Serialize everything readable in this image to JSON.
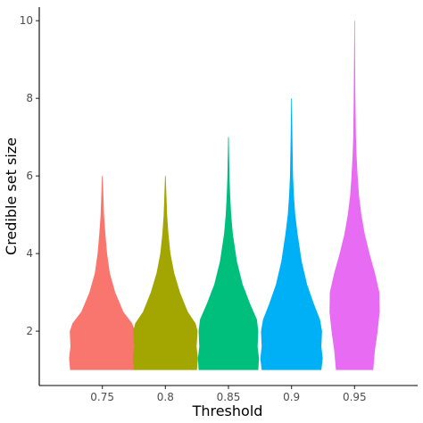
{
  "chart_data": {
    "type": "violin",
    "xlabel": "Threshold",
    "ylabel": "Credible set size",
    "ylim": [
      0.6,
      10.35
    ],
    "yticks": [
      2,
      4,
      6,
      8,
      10
    ],
    "grid": false,
    "legend": "none",
    "categories": [
      "0.75",
      "0.8",
      "0.85",
      "0.9",
      "0.95"
    ],
    "series": [
      {
        "category": "0.75",
        "color": "#F8766D",
        "min": 1,
        "max": 6,
        "density": [
          [
            1,
            0.95
          ],
          [
            1.3,
            0.98
          ],
          [
            1.6,
            0.94
          ],
          [
            2,
            0.96
          ],
          [
            2.2,
            0.88
          ],
          [
            2.5,
            0.62
          ],
          [
            3,
            0.38
          ],
          [
            3.5,
            0.22
          ],
          [
            4,
            0.14
          ],
          [
            4.5,
            0.09
          ],
          [
            5,
            0.05
          ],
          [
            5.5,
            0.03
          ],
          [
            6,
            0.01
          ]
        ]
      },
      {
        "category": "0.8",
        "color": "#A3A500",
        "min": 1,
        "max": 6,
        "density": [
          [
            1,
            0.93
          ],
          [
            1.3,
            0.96
          ],
          [
            1.6,
            0.92
          ],
          [
            2,
            0.95
          ],
          [
            2.2,
            0.89
          ],
          [
            2.5,
            0.66
          ],
          [
            3,
            0.43
          ],
          [
            3.5,
            0.26
          ],
          [
            4,
            0.15
          ],
          [
            4.5,
            0.09
          ],
          [
            5,
            0.05
          ],
          [
            5.5,
            0.03
          ],
          [
            6,
            0.01
          ]
        ]
      },
      {
        "category": "0.85",
        "color": "#00BF7D",
        "min": 1,
        "max": 7,
        "density": [
          [
            1,
            0.88
          ],
          [
            1.3,
            0.9
          ],
          [
            1.6,
            0.86
          ],
          [
            2,
            0.88
          ],
          [
            2.3,
            0.84
          ],
          [
            2.7,
            0.64
          ],
          [
            3.2,
            0.42
          ],
          [
            3.8,
            0.25
          ],
          [
            4.5,
            0.13
          ],
          [
            5,
            0.08
          ],
          [
            5.5,
            0.05
          ],
          [
            6,
            0.03
          ],
          [
            6.5,
            0.02
          ],
          [
            7,
            0.01
          ]
        ]
      },
      {
        "category": "0.9",
        "color": "#00B0F6",
        "min": 1,
        "max": 8,
        "density": [
          [
            1,
            0.88
          ],
          [
            1.3,
            0.92
          ],
          [
            1.6,
            0.88
          ],
          [
            2,
            0.9
          ],
          [
            2.3,
            0.84
          ],
          [
            2.7,
            0.66
          ],
          [
            3.2,
            0.46
          ],
          [
            3.8,
            0.3
          ],
          [
            4.5,
            0.18
          ],
          [
            5,
            0.11
          ],
          [
            5.5,
            0.07
          ],
          [
            6,
            0.045
          ],
          [
            7,
            0.025
          ],
          [
            8,
            0.01
          ]
        ]
      },
      {
        "category": "0.95",
        "color": "#E76BF3",
        "min": 1,
        "max": 10,
        "density": [
          [
            1,
            0.55
          ],
          [
            1.5,
            0.6
          ],
          [
            2,
            0.68
          ],
          [
            2.5,
            0.74
          ],
          [
            3,
            0.73
          ],
          [
            3.5,
            0.6
          ],
          [
            4,
            0.44
          ],
          [
            4.5,
            0.3
          ],
          [
            5,
            0.2
          ],
          [
            5.5,
            0.13
          ],
          [
            6,
            0.09
          ],
          [
            6.5,
            0.06
          ],
          [
            7,
            0.04
          ],
          [
            8,
            0.025
          ],
          [
            9,
            0.015
          ],
          [
            10,
            0.008
          ]
        ]
      }
    ]
  }
}
